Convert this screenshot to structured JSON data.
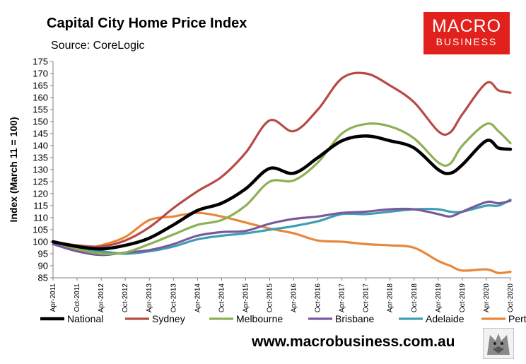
{
  "header": {
    "title": "Capital City Home Price Index",
    "subtitle": "Source: CoreLogic"
  },
  "logo": {
    "line1": "MACRO",
    "line2": "BUSINESS"
  },
  "footer": {
    "website": "www.macrobusiness.com.au"
  },
  "colors": {
    "National": "#000000",
    "Sydney": "#b84a45",
    "Melbourne": "#8cb054",
    "Brisbane": "#7a5a9a",
    "Adelaide": "#3d9fb3",
    "Perth": "#e8873a",
    "logo_bg": "#e2211c"
  },
  "chart_data": {
    "type": "line",
    "title": "Capital City Home Price Index",
    "subtitle": "Source: CoreLogic",
    "ylabel": "Index (March 11 = 100)",
    "xlabel": "",
    "ylim": [
      85,
      175
    ],
    "yticks": [
      85,
      90,
      95,
      100,
      105,
      110,
      115,
      120,
      125,
      130,
      135,
      140,
      145,
      150,
      155,
      160,
      165,
      170,
      175
    ],
    "xlim": [
      "2011-04",
      "2020-10"
    ],
    "xticks": [
      "Apr-2011",
      "Oct-2011",
      "Apr-2012",
      "Oct-2012",
      "Apr-2013",
      "Oct-2013",
      "Apr-2014",
      "Oct-2014",
      "Apr-2015",
      "Oct-2015",
      "Apr-2016",
      "Oct-2016",
      "Apr-2017",
      "Oct-2017",
      "Apr-2018",
      "Oct-2018",
      "Apr-2019",
      "Oct-2019",
      "Apr-2020",
      "Oct-2020"
    ],
    "grid": false,
    "legend": "bottom",
    "series": [
      {
        "name": "National",
        "x": [
          "2011-04",
          "2011-10",
          "2012-04",
          "2012-10",
          "2013-04",
          "2013-10",
          "2014-04",
          "2014-10",
          "2015-04",
          "2015-10",
          "2016-04",
          "2016-10",
          "2017-04",
          "2017-10",
          "2018-04",
          "2018-10",
          "2019-04",
          "2019-07",
          "2019-10",
          "2020-04",
          "2020-07",
          "2020-10"
        ],
        "values": [
          100,
          98,
          97,
          98.5,
          101.5,
          107,
          113,
          116,
          122,
          130.5,
          128.5,
          135,
          142,
          144,
          142,
          139,
          130,
          128.5,
          132,
          142,
          139,
          138.5
        ]
      },
      {
        "name": "Sydney",
        "x": [
          "2011-04",
          "2011-10",
          "2012-04",
          "2012-10",
          "2013-04",
          "2013-10",
          "2014-04",
          "2014-10",
          "2015-04",
          "2015-10",
          "2016-04",
          "2016-10",
          "2017-04",
          "2017-10",
          "2018-04",
          "2018-10",
          "2019-04",
          "2019-07",
          "2019-10",
          "2020-04",
          "2020-07",
          "2020-10"
        ],
        "values": [
          100,
          98.5,
          98,
          100.5,
          106,
          114,
          121,
          127,
          137,
          150.5,
          146,
          155,
          168,
          170,
          165,
          158,
          146,
          145.5,
          153,
          166,
          163,
          162
        ]
      },
      {
        "name": "Melbourne",
        "x": [
          "2011-04",
          "2011-10",
          "2012-04",
          "2012-10",
          "2013-04",
          "2013-10",
          "2014-04",
          "2014-10",
          "2015-04",
          "2015-10",
          "2016-04",
          "2016-10",
          "2017-04",
          "2017-10",
          "2018-04",
          "2018-10",
          "2019-04",
          "2019-07",
          "2019-10",
          "2020-04",
          "2020-07",
          "2020-10"
        ],
        "values": [
          100,
          97,
          95,
          95.5,
          99,
          103,
          107,
          109,
          115,
          125,
          125.5,
          133,
          145,
          149,
          148,
          143,
          133,
          132.5,
          140,
          149,
          146,
          141
        ]
      },
      {
        "name": "Brisbane",
        "x": [
          "2011-04",
          "2011-10",
          "2012-04",
          "2012-10",
          "2013-04",
          "2013-10",
          "2014-04",
          "2014-10",
          "2015-04",
          "2015-10",
          "2016-04",
          "2016-10",
          "2017-04",
          "2017-10",
          "2018-04",
          "2018-10",
          "2019-04",
          "2019-07",
          "2019-10",
          "2020-04",
          "2020-07",
          "2020-10"
        ],
        "values": [
          99,
          96,
          94.5,
          95.5,
          96.5,
          99,
          102.5,
          104,
          104.5,
          107.5,
          109.5,
          110.5,
          112,
          112.5,
          113.5,
          113.5,
          111.5,
          110.5,
          112.5,
          116.5,
          116,
          117
        ]
      },
      {
        "name": "Adelaide",
        "x": [
          "2011-04",
          "2011-10",
          "2012-04",
          "2012-10",
          "2013-04",
          "2013-10",
          "2014-04",
          "2014-10",
          "2015-04",
          "2015-10",
          "2016-04",
          "2016-10",
          "2017-04",
          "2017-10",
          "2018-04",
          "2018-10",
          "2019-04",
          "2019-07",
          "2019-10",
          "2020-04",
          "2020-07",
          "2020-10"
        ],
        "values": [
          100,
          97,
          96,
          95,
          96,
          98,
          101,
          102.5,
          103.5,
          105,
          106.5,
          108.5,
          111.5,
          111.5,
          112.5,
          113.5,
          113.5,
          112.5,
          112.5,
          115,
          115,
          117.5
        ]
      },
      {
        "name": "Perth",
        "x": [
          "2011-04",
          "2011-10",
          "2012-04",
          "2012-10",
          "2013-04",
          "2013-10",
          "2014-04",
          "2014-10",
          "2015-04",
          "2015-10",
          "2016-04",
          "2016-10",
          "2017-04",
          "2017-10",
          "2018-04",
          "2018-10",
          "2019-04",
          "2019-07",
          "2019-10",
          "2020-04",
          "2020-07",
          "2020-10"
        ],
        "values": [
          100,
          97,
          98.5,
          102,
          109,
          110.5,
          112,
          110.5,
          108,
          105.5,
          103.5,
          100.5,
          100,
          99,
          98.5,
          97.5,
          92,
          90,
          88,
          88.5,
          87,
          87.5
        ]
      }
    ]
  }
}
